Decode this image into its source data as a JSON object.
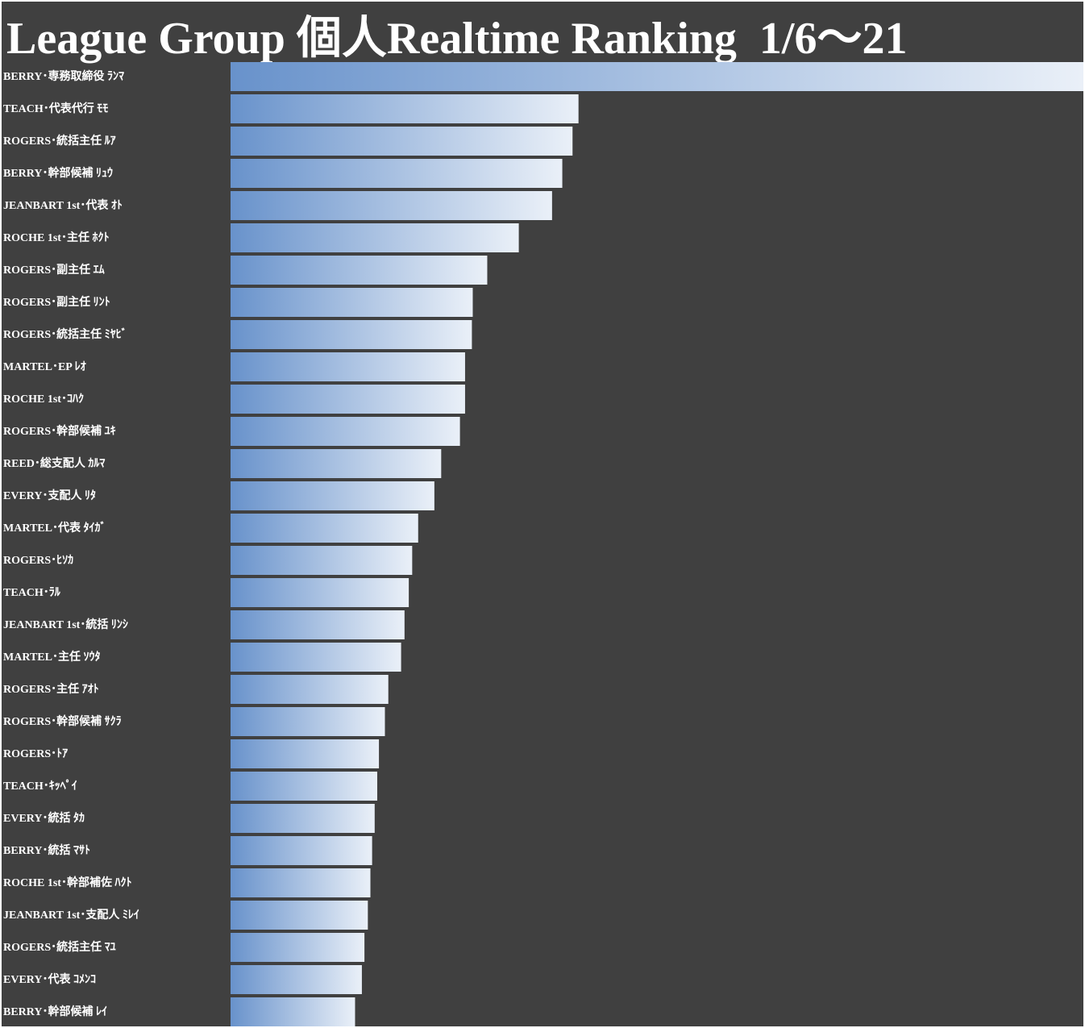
{
  "chart_data": {
    "type": "hbar",
    "title": "League Group 個人Realtime Ranking  1/6～21",
    "categories": [
      "BERRY･専務取締役 ﾗﾝﾏ",
      "TEACH･代表代行 ﾓﾓ",
      "ROGERS･統括主任 ﾙｱ",
      "BERRY･幹部候補 ﾘｭｳ",
      "JEANBART 1st･代表 ｵﾄ",
      "ROCHE 1st･主任 ﾎｸﾄ",
      "ROGERS･副主任 ｴﾑ",
      "ROGERS･副主任 ﾘﾝﾄ",
      "ROGERS･統括主任 ﾐﾔﾋﾞ",
      "MARTEL･EP ﾚｵ",
      "ROCHE 1st･ｺﾊｸ",
      "ROGERS･幹部候補 ﾕｷ",
      "REED･総支配人 ｶﾙﾏ",
      "EVERY･支配人 ﾘﾀ",
      "MARTEL･代表 ﾀｲｶﾞ",
      "ROGERS･ﾋｿｶ",
      "TEACH･ﾗﾙ",
      "JEANBART 1st･統括 ﾘﾝｼ",
      "MARTEL･主任 ｿｳﾀ",
      "ROGERS･主任 ｱｵﾄ",
      "ROGERS･幹部候補 ｻｸﾗ",
      "ROGERS･ﾄｱ",
      "TEACH･ｷｯﾍﾟｲ",
      "EVERY･統括 ﾀｶ",
      "BERRY･統括 ﾏｻﾄ",
      "ROCHE 1st･幹部補佐 ﾊｸﾄ",
      "JEANBART 1st･支配人 ﾐﾚｲ",
      "ROGERS･統括主任 ﾏﾕ",
      "EVERY･代表 ｺﾒﾝｺ",
      "BERRY･幹部候補 ﾚｲ"
    ],
    "values": [
      100,
      40.8,
      40.1,
      38.9,
      37.7,
      33.8,
      30.1,
      28.4,
      28.3,
      27.5,
      27.5,
      26.9,
      24.7,
      23.9,
      22.0,
      21.3,
      20.9,
      20.4,
      20.0,
      18.5,
      18.1,
      17.4,
      17.2,
      16.9,
      16.6,
      16.4,
      16.1,
      15.7,
      15.4,
      14.6
    ],
    "xlim": [
      0,
      100
    ],
    "gradient": [
      "#6892cb",
      "#eaf0f8"
    ]
  }
}
